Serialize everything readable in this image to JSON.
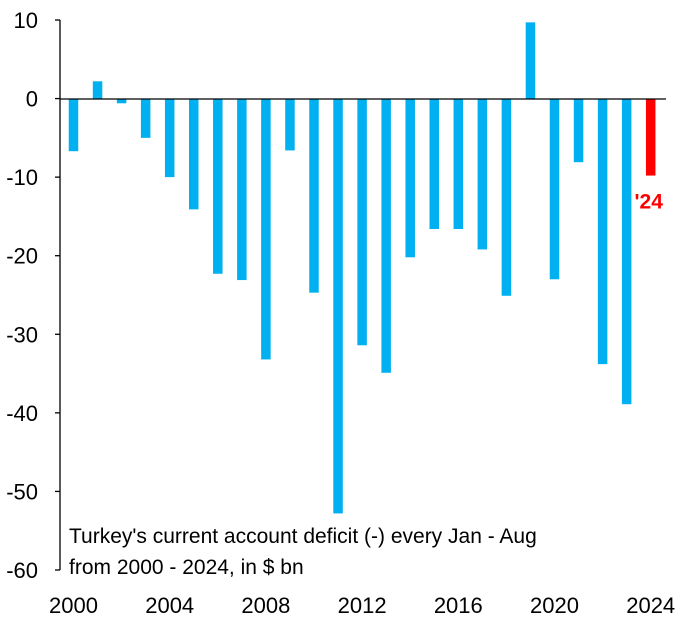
{
  "chart_data": {
    "type": "bar",
    "title": "Turkey's current account deficit (-) every Jan - Aug from 2000 - 2024, in $ bn",
    "annotation_lines": [
      "Turkey's current account deficit (-) every Jan - Aug",
      "from 2000 - 2024, in $ bn"
    ],
    "xlabel": "",
    "ylabel": "",
    "ylim": [
      -60,
      10
    ],
    "yticks": [
      10,
      0,
      -10,
      -20,
      -30,
      -40,
      -50,
      -60
    ],
    "xtick_labels": [
      "2000",
      "2004",
      "2008",
      "2012",
      "2016",
      "2020",
      "2024"
    ],
    "categories": [
      2000,
      2001,
      2002,
      2003,
      2004,
      2005,
      2006,
      2007,
      2008,
      2009,
      2010,
      2011,
      2012,
      2013,
      2014,
      2015,
      2016,
      2017,
      2018,
      2019,
      2020,
      2021,
      2022,
      2023,
      2024
    ],
    "values": [
      -6.7,
      2.2,
      -0.6,
      -5.0,
      -10.0,
      -14.1,
      -22.3,
      -23.1,
      -33.2,
      -6.6,
      -24.7,
      -52.8,
      -31.4,
      -34.9,
      -20.2,
      -16.6,
      -16.6,
      -19.2,
      -25.1,
      9.7,
      -23.0,
      -8.1,
      -33.8,
      -38.9,
      -9.8
    ],
    "highlight": {
      "year": 2024,
      "label": "'24",
      "color": "#ff0000"
    },
    "colors": {
      "bar": "#00b0f0",
      "highlight": "#ff0000",
      "axis": "#000000"
    },
    "grid": false,
    "legend": "none"
  }
}
